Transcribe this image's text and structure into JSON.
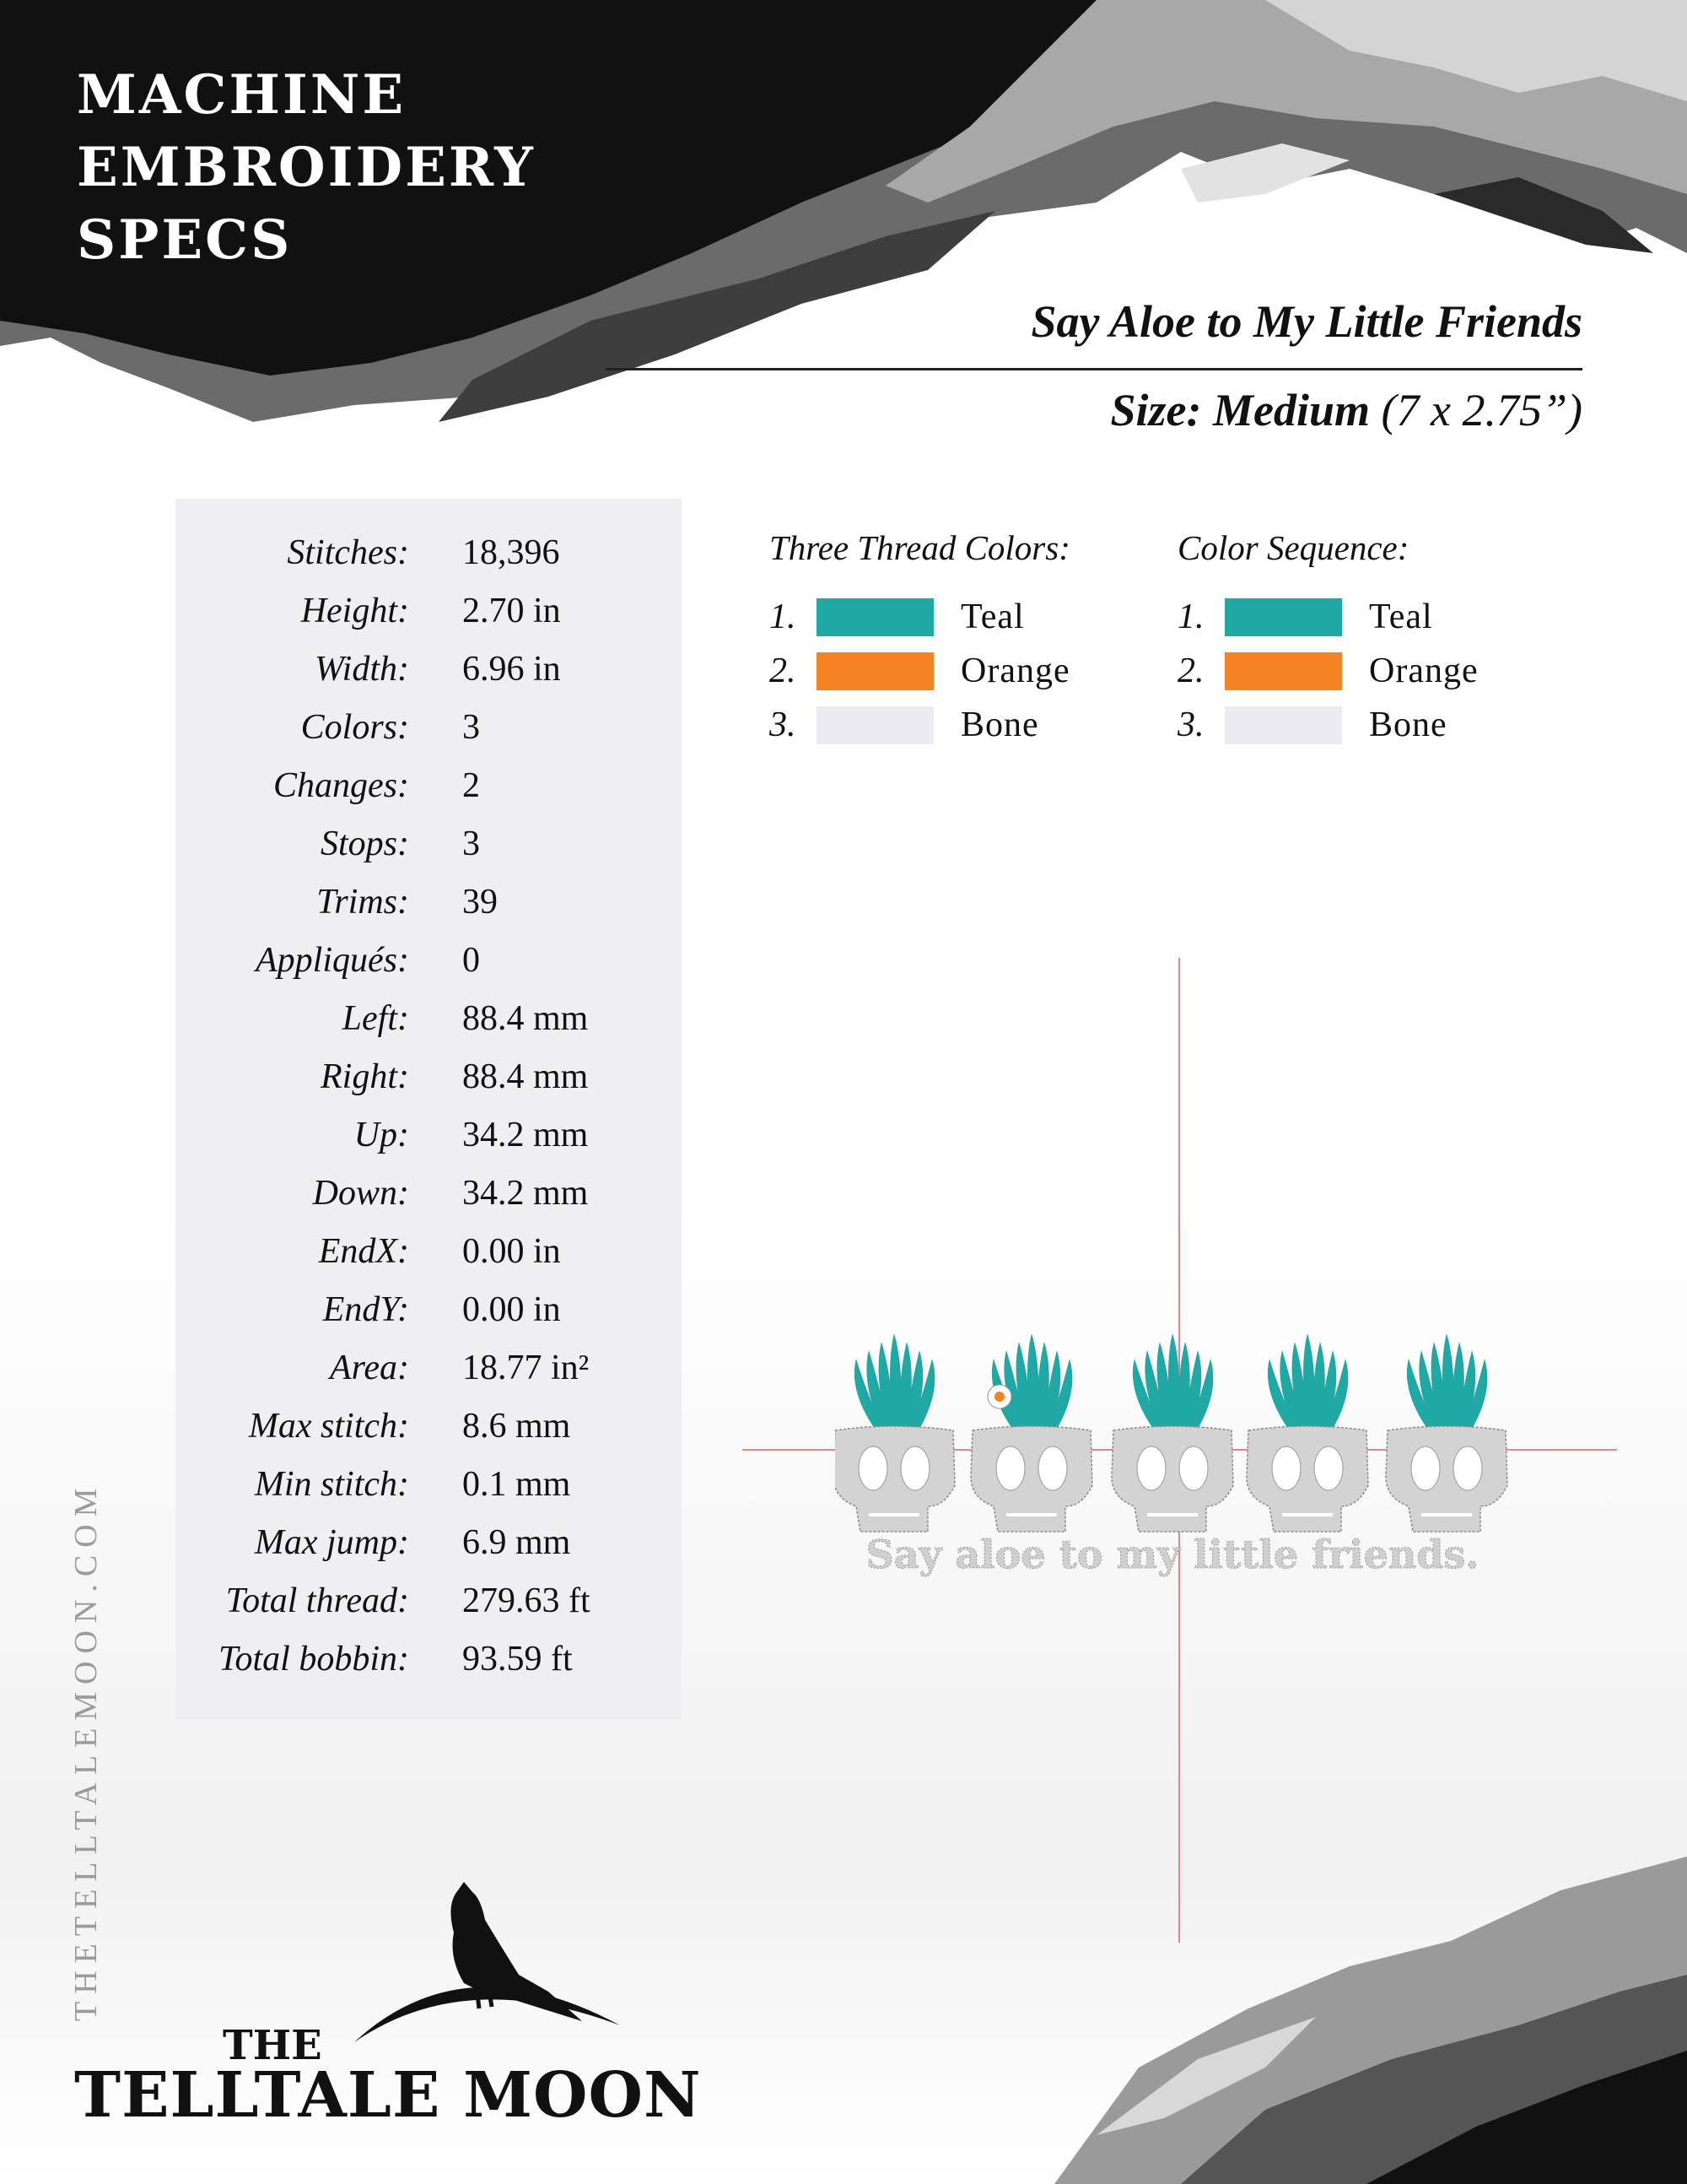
{
  "header": {
    "title_lines": [
      "MACHINE",
      "EMBROIDERY",
      "SPECS"
    ],
    "design_name": "Say Aloe to My Little Friends",
    "size_label": "Size: Medium",
    "size_dims": "(7 x 2.75”)"
  },
  "stats": [
    {
      "label": "Stitches:",
      "value": "18,396"
    },
    {
      "label": "Height:",
      "value": "2.70 in"
    },
    {
      "label": "Width:",
      "value": "6.96 in"
    },
    {
      "label": "Colors:",
      "value": "3"
    },
    {
      "label": "Changes:",
      "value": "2"
    },
    {
      "label": "Stops:",
      "value": "3"
    },
    {
      "label": "Trims:",
      "value": "39"
    },
    {
      "label": "Appliqués:",
      "value": "0"
    },
    {
      "label": "Left:",
      "value": "88.4 mm"
    },
    {
      "label": "Right:",
      "value": "88.4 mm"
    },
    {
      "label": "Up:",
      "value": "34.2 mm"
    },
    {
      "label": "Down:",
      "value": "34.2 mm"
    },
    {
      "label": "EndX:",
      "value": "0.00 in"
    },
    {
      "label": "EndY:",
      "value": "0.00 in"
    },
    {
      "label": "Area:",
      "value": "18.77 in²"
    },
    {
      "label": "Max stitch:",
      "value": "8.6 mm"
    },
    {
      "label": "Min stitch:",
      "value": "0.1 mm"
    },
    {
      "label": "Max jump:",
      "value": "6.9 mm"
    },
    {
      "label": "Total thread:",
      "value": "279.63 ft"
    },
    {
      "label": "Total bobbin:",
      "value": "93.59 ft"
    }
  ],
  "thread_colors": {
    "heading": "Three Thread Colors:",
    "items": [
      {
        "num": "1.",
        "name": "Teal",
        "color": "#1fa8a4"
      },
      {
        "num": "2.",
        "name": "Orange",
        "color": "#f58223"
      },
      {
        "num": "3.",
        "name": "Bone",
        "color": "#ecebf2"
      }
    ]
  },
  "color_sequence": {
    "heading": "Color Sequence:",
    "items": [
      {
        "num": "1.",
        "name": "Teal",
        "color": "#1fa8a4"
      },
      {
        "num": "2.",
        "name": "Orange",
        "color": "#f58223"
      },
      {
        "num": "3.",
        "name": "Bone",
        "color": "#ecebf2"
      }
    ]
  },
  "preview": {
    "caption": "Say aloe to my little friends."
  },
  "footer": {
    "website": "THETELLTALEMOON.COM",
    "logo_the": "THE",
    "logo_name": "TELLTALE MOON"
  }
}
